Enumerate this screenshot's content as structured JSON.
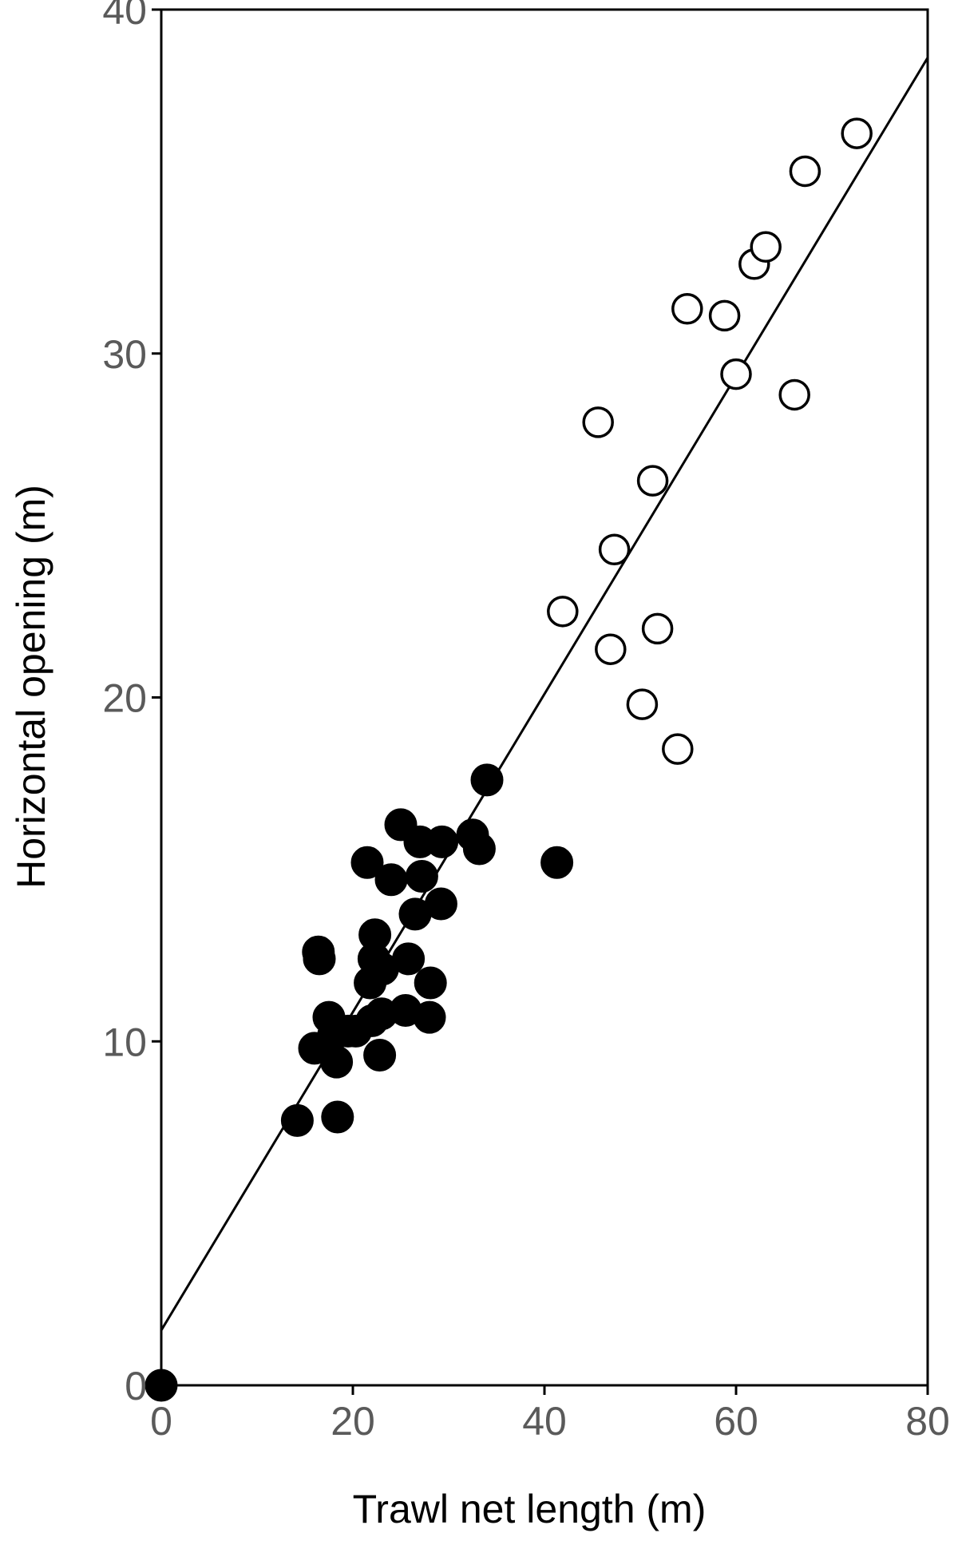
{
  "chart_data": {
    "type": "scatter",
    "title": "",
    "xlabel": "Trawl net length (m)",
    "ylabel": "Horizontal opening (m)",
    "xlim": [
      0,
      80
    ],
    "ylim": [
      0,
      40
    ],
    "xticks": [
      0,
      20,
      40,
      60,
      80
    ],
    "yticks": [
      0,
      10,
      20,
      30,
      40
    ],
    "xtick_labels": [
      "0",
      "20",
      "40",
      "60",
      "80"
    ],
    "ytick_labels": [
      "0",
      "10",
      "20",
      "30",
      "40"
    ],
    "grid": false,
    "series": [
      {
        "marker": "filled-circle",
        "color": "#000000",
        "points": [
          [
            0.0,
            0.0
          ],
          [
            14.2,
            7.7
          ],
          [
            18.4,
            7.8
          ],
          [
            16.0,
            9.8
          ],
          [
            18.3,
            9.4
          ],
          [
            18.0,
            10.2
          ],
          [
            17.5,
            10.7
          ],
          [
            19.5,
            10.3
          ],
          [
            20.3,
            10.3
          ],
          [
            22.8,
            9.6
          ],
          [
            22.0,
            10.6
          ],
          [
            23.0,
            10.8
          ],
          [
            25.5,
            10.9
          ],
          [
            28.0,
            10.7
          ],
          [
            21.8,
            11.7
          ],
          [
            23.1,
            12.1
          ],
          [
            22.2,
            12.4
          ],
          [
            25.8,
            12.4
          ],
          [
            28.1,
            11.7
          ],
          [
            16.4,
            12.6
          ],
          [
            16.5,
            12.4
          ],
          [
            22.3,
            13.1
          ],
          [
            26.5,
            13.7
          ],
          [
            29.2,
            14.0
          ],
          [
            21.5,
            15.2
          ],
          [
            24.0,
            14.7
          ],
          [
            27.2,
            14.8
          ],
          [
            41.3,
            15.2
          ],
          [
            27.0,
            15.8
          ],
          [
            29.3,
            15.8
          ],
          [
            25.0,
            16.3
          ],
          [
            32.5,
            16.0
          ],
          [
            33.2,
            15.6
          ],
          [
            34.0,
            17.6
          ]
        ]
      },
      {
        "marker": "open-circle",
        "color": "#000000",
        "points": [
          [
            41.9,
            22.5
          ],
          [
            45.6,
            28.0
          ],
          [
            46.9,
            21.4
          ],
          [
            47.3,
            24.3
          ],
          [
            50.2,
            19.8
          ],
          [
            51.3,
            26.3
          ],
          [
            51.8,
            22.0
          ],
          [
            53.9,
            18.5
          ],
          [
            54.9,
            31.3
          ],
          [
            58.8,
            31.1
          ],
          [
            60.0,
            29.4
          ],
          [
            61.9,
            32.6
          ],
          [
            63.1,
            33.1
          ],
          [
            66.1,
            28.8
          ],
          [
            67.2,
            35.3
          ],
          [
            72.6,
            36.4
          ]
        ]
      }
    ],
    "fit_line": {
      "style": "solid",
      "color": "#000000",
      "x": [
        0,
        80
      ],
      "y": [
        1.6,
        38.6
      ]
    }
  }
}
